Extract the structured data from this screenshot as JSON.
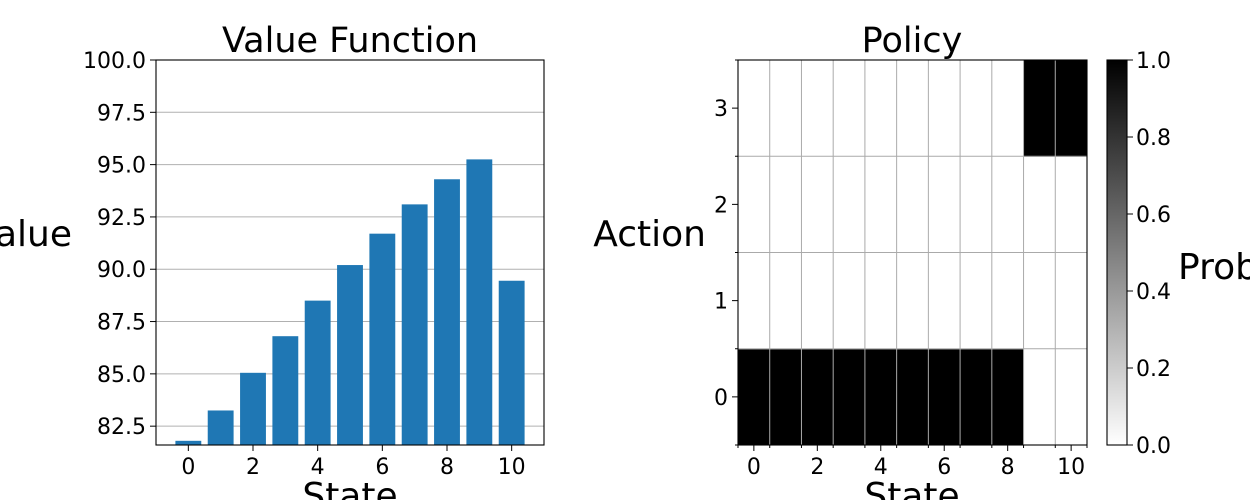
{
  "chart_data": [
    {
      "type": "bar",
      "title": "Value Function",
      "xlabel": "State",
      "ylabel": "Value",
      "x": [
        0,
        1,
        2,
        3,
        4,
        5,
        6,
        7,
        8,
        9,
        10
      ],
      "values": [
        81.8,
        83.25,
        85.05,
        86.8,
        88.5,
        90.2,
        91.7,
        93.1,
        94.3,
        95.25,
        89.45
      ],
      "xlim": [
        -1,
        11
      ],
      "ylim": [
        81.6,
        100.0
      ],
      "xticks": [
        "0",
        "2",
        "4",
        "6",
        "8",
        "10"
      ],
      "yticks": [
        "82.5",
        "85.0",
        "87.5",
        "90.0",
        "92.5",
        "95.0",
        "97.5",
        "100.0"
      ],
      "bar_color": "#1f77b4",
      "grid": "y"
    },
    {
      "type": "heatmap",
      "title": "Policy",
      "xlabel": "State",
      "ylabel": "Action",
      "states": [
        0,
        1,
        2,
        3,
        4,
        5,
        6,
        7,
        8,
        9,
        10
      ],
      "actions": [
        0,
        1,
        2,
        3
      ],
      "matrix": [
        [
          1,
          1,
          1,
          1,
          1,
          1,
          1,
          1,
          1,
          0,
          0
        ],
        [
          0,
          0,
          0,
          0,
          0,
          0,
          0,
          0,
          0,
          0,
          0
        ],
        [
          0,
          0,
          0,
          0,
          0,
          0,
          0,
          0,
          0,
          0,
          0
        ],
        [
          0,
          0,
          0,
          0,
          0,
          0,
          0,
          0,
          0,
          1,
          1
        ]
      ],
      "xticks": [
        "0",
        "2",
        "4",
        "6",
        "8",
        "10"
      ],
      "yticks": [
        "0",
        "1",
        "2",
        "3"
      ],
      "colormap": "Greys",
      "grid": "on",
      "colorbar": {
        "label": "Prob",
        "range": [
          0.0,
          1.0
        ],
        "ticks": [
          "0.0",
          "0.2",
          "0.4",
          "0.6",
          "0.8",
          "1.0"
        ]
      }
    }
  ]
}
